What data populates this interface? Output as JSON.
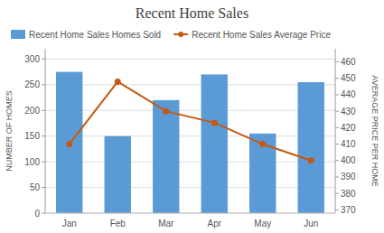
{
  "chart_data": {
    "type": "bar",
    "title": "Recent Home Sales",
    "categories": [
      "Jan",
      "Feb",
      "Mar",
      "Apr",
      "May",
      "Jun"
    ],
    "series": [
      {
        "name": "Recent Home Sales Homes Sold",
        "type": "bar",
        "color": "#5B9BD5",
        "values": [
          275,
          150,
          220,
          270,
          155,
          255
        ]
      },
      {
        "name": "Recent Home Sales Average Price",
        "type": "line",
        "color": "#C45911",
        "marker": "circle",
        "axis": "y2",
        "values": [
          410,
          448,
          430,
          423,
          410,
          400
        ]
      }
    ],
    "ylim": [
      0,
      320
    ],
    "yticks": [
      0,
      50,
      100,
      150,
      200,
      250,
      300
    ],
    "y2lim": [
      368,
      468
    ],
    "y2ticks": [
      370,
      380,
      390,
      400,
      410,
      420,
      430,
      440,
      450,
      460
    ],
    "y_label": "NUMBER OF HOMES",
    "y2_label": "AVERAGE PRICE PER HOME",
    "grid": true,
    "legend": "top-left"
  }
}
